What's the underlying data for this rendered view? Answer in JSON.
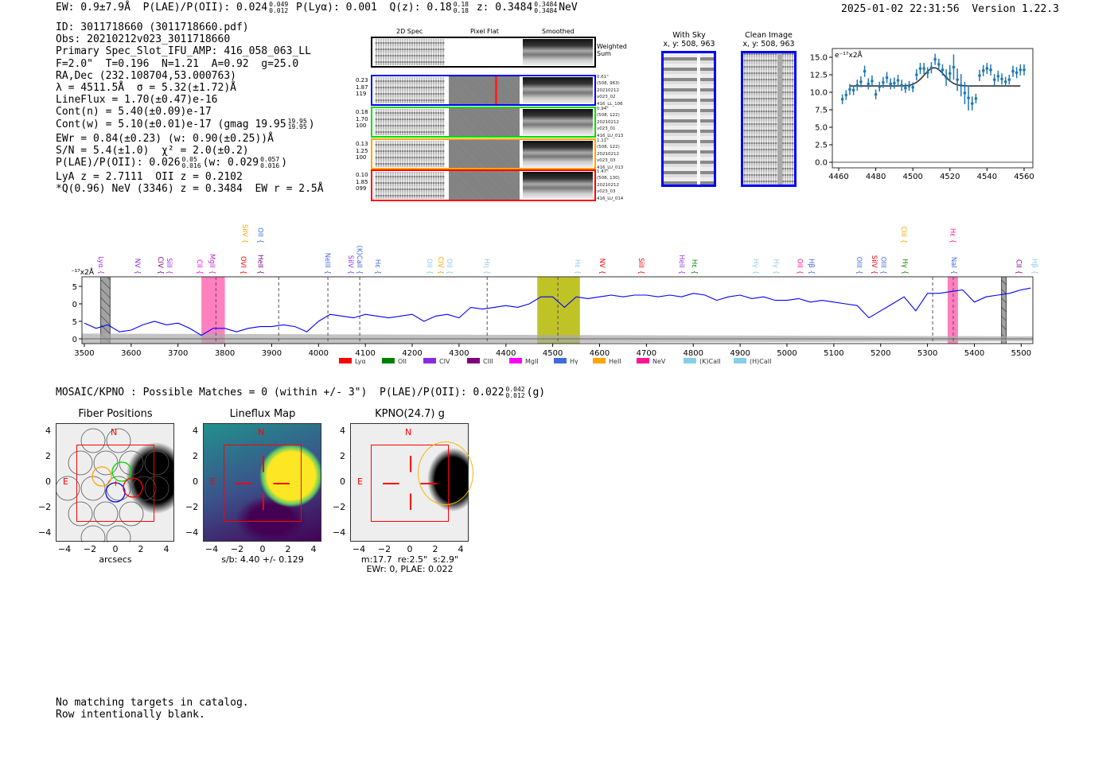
{
  "header": {
    "ew": "EW: 0.9±7.9Å",
    "plae_label": "P(LAE)/P(OII): 0.024",
    "plae_hi": "0.049",
    "plae_lo": "0.012",
    "plya": "P(Lyα): 0.001",
    "qz_label": "Q(z): 0.18",
    "qz_hi": "0.18",
    "qz_lo": "0.18",
    "z_label": "z: 0.3484",
    "z_hi": "0.3484",
    "z_lo": "0.3484",
    "z_line": "NeV",
    "datetime": "2025-01-02 22:31:56",
    "version": "Version 1.22.3"
  },
  "info": {
    "lines": [
      "ID: 3011718660 (3011718660.pdf)",
      "Obs: 20210212v023_3011718660",
      "Primary Spec_Slot_IFU_AMP: 416_058_063_LL",
      "F=2.0\"  T=0.196  N=1.21  A=0.92  g=25.0",
      "RA,Dec (232.108704,53.000763)",
      "λ = 4511.5Å  σ = 5.32(±1.72)Å",
      "LineFlux = 1.70(±0.47)e-16",
      "Cont(n) = 5.40(±0.09)e-17"
    ],
    "contw": "Cont(w) = 5.10(±0.01)e-17 (gmag 19.95",
    "contw_hi": "19.95",
    "contw_lo": "19.95",
    "contw_end": ")",
    "ewr": "EWr = 0.84(±0.23) (w: 0.90(±0.25))Å",
    "sn": "S/N = 5.4(±1.0)  χ² = 2.0(±0.2)",
    "plae2": "P(LAE)/P(OII): 0.026",
    "plae2_hi": "0.05",
    "plae2_lo": "0.016",
    "plae2_w": "(w: 0.029",
    "plae2_w_hi": "0.057",
    "plae2_w_lo": "0.016",
    "plae2_end": ")",
    "lya": "LyA z = 2.7111  OII z = 0.2102",
    "q": "*Q(0.96) NeV (3346) z = 0.3484  EW r = 2.5Å"
  },
  "cutouts": {
    "headers": [
      "2D Spec",
      "Pixel Flat",
      "Smoothed"
    ],
    "weighted_sum": "Weighted\nSum",
    "rows": [
      {
        "color": "#0000ff",
        "left": "0.23\n1.87\n119",
        "right": "0.61\"\n(508, 963)\n20210212\nv023_02\n416_LL_106"
      },
      {
        "color": "#00dd00",
        "left": "0.18\n1.70\n100",
        "right": "0.94\"\n(508, 122)\n20210212\nv023_01\n416_LU_013"
      },
      {
        "color": "#ffa500",
        "left": "0.13\n1.25\n100",
        "right": "1.11\"\n(508, 122)\n20210212\nv023_03\n416_LU_013"
      },
      {
        "color": "#ff0000",
        "left": "0.10\n1.85\n099",
        "right": "1.47\"\n(508, 130)\n20210212\nv023_03\n416_LU_014"
      }
    ],
    "with_sky": "With Sky\nx, y: 508, 963",
    "clean": "Clean Image\nx, y: 508, 963"
  },
  "mosaic": {
    "title": "MOSAIC/KPNO : Possible Matches = 0 (within +/- 3\")  P(LAE)/P(OII): 0.022",
    "hi": "0.042",
    "lo": "0.012",
    "band": "(g)",
    "panels": [
      {
        "title": "Fiber Positions",
        "caption": "arcsecs"
      },
      {
        "title": "Lineflux Map",
        "caption": "s/b: 4.40 +/- 0.129"
      },
      {
        "title": "KPNO(24.7) g",
        "caption": "m:17.7  re:2.5\"  s:2.9\"\nEWr: 0, PLAE: 0.022"
      }
    ],
    "north": "N",
    "east": "E",
    "ticks": [
      "4",
      "2",
      "0",
      "−2",
      "−4"
    ],
    "xticks": [
      "−4",
      "−2",
      "0",
      "2",
      "4"
    ]
  },
  "footer": {
    "line1": "No matching targets in catalog.",
    "line2": "Row intentionally blank."
  },
  "colors": {
    "spectrum": "#0000ff",
    "errorbar": "#1f77b4",
    "fit": "#333333",
    "shade_pink": "#ff69b4",
    "shade_olive": "#b5b800"
  },
  "chart_data": [
    {
      "type": "line",
      "title": "",
      "ylabel": "e⁻¹⁷x2Å",
      "xlim": [
        3495,
        5525
      ],
      "ylim": [
        -1.4,
        17.7
      ],
      "xticks": [
        3500,
        3600,
        3700,
        3800,
        3900,
        4000,
        4100,
        4200,
        4300,
        4400,
        4500,
        4600,
        4700,
        4800,
        4900,
        5000,
        5100,
        5200,
        5300,
        5400,
        5500
      ],
      "yticks": [
        0,
        5,
        10,
        15
      ],
      "x": [
        3500,
        3525,
        3550,
        3575,
        3600,
        3625,
        3650,
        3675,
        3700,
        3725,
        3750,
        3775,
        3800,
        3825,
        3850,
        3875,
        3900,
        3925,
        3950,
        3975,
        4000,
        4025,
        4050,
        4075,
        4100,
        4125,
        4150,
        4175,
        4200,
        4225,
        4250,
        4275,
        4300,
        4325,
        4350,
        4375,
        4400,
        4425,
        4450,
        4475,
        4500,
        4525,
        4550,
        4575,
        4600,
        4625,
        4650,
        4675,
        4700,
        4725,
        4750,
        4775,
        4800,
        4825,
        4850,
        4875,
        4900,
        4925,
        4950,
        4975,
        5000,
        5025,
        5050,
        5075,
        5100,
        5125,
        5150,
        5175,
        5200,
        5225,
        5250,
        5275,
        5300,
        5325,
        5350,
        5375,
        5400,
        5425,
        5450,
        5475,
        5500,
        5520
      ],
      "y": [
        4.5,
        3,
        4,
        2,
        2.5,
        4,
        5,
        4,
        4.5,
        3,
        1,
        3,
        3,
        2,
        3,
        3.5,
        3.5,
        4,
        3.5,
        2,
        5,
        7,
        6.5,
        6,
        7,
        6.5,
        6,
        6.5,
        7,
        5,
        6.5,
        7,
        6,
        9,
        8.5,
        9,
        9.5,
        9,
        10,
        12,
        12,
        9,
        12,
        11.5,
        12,
        12.5,
        12,
        12.5,
        12.5,
        12,
        12.5,
        12,
        13,
        12.5,
        11,
        12,
        12.5,
        11.5,
        12,
        11,
        11,
        11.5,
        10.5,
        11,
        10.5,
        10,
        9.5,
        6,
        8,
        10,
        12,
        8,
        13,
        13,
        13.5,
        14,
        10.5,
        12,
        12.5,
        13,
        14,
        14.5
      ],
      "error_band": {
        "start": 1.5,
        "end": 0.7
      },
      "shaded_regions": [
        {
          "from": 3535,
          "to": 3555,
          "color": "#999999",
          "hatch": true
        },
        {
          "from": 3750,
          "to": 3800,
          "color": "#ff69b4"
        },
        {
          "from": 4467,
          "to": 4558,
          "color": "#b5b800"
        },
        {
          "from": 5343,
          "to": 5365,
          "color": "#ff69b4"
        },
        {
          "from": 5458,
          "to": 5468,
          "color": "#999999",
          "hatch": true
        }
      ],
      "dashed_lines": [
        3781,
        3915,
        4020,
        4088,
        4360,
        4511,
        5311,
        5355
      ],
      "line_labels": [
        {
          "label": "Lyα {",
          "wave": 3536,
          "color": "#9b30ff",
          "row": 0
        },
        {
          "label": "NV {",
          "wave": 3614,
          "color": "#8a2be2",
          "row": 0
        },
        {
          "label": "CIV {",
          "wave": 3663,
          "color": "#800080",
          "row": 0
        },
        {
          "label": "SiII {",
          "wave": 3678,
          "color": "#9b30ff",
          "row": 0
        },
        {
          "label": "CII {",
          "wave": 3746,
          "color": "#ff00ff",
          "row": 0
        },
        {
          "label": "MgII {",
          "wave": 3774,
          "color": "#d020d0",
          "row": 0
        },
        {
          "label": "OVI {",
          "wave": 3840,
          "color": "#ff0000",
          "row": 0
        },
        {
          "label": "HeII {",
          "wave": 3876,
          "color": "#800080",
          "row": 0
        },
        {
          "label": "SiIV {",
          "wave": 3843,
          "color": "#ffa500",
          "row": 1
        },
        {
          "label": "OII {",
          "wave": 3876,
          "color": "#4169e1",
          "row": 1
        },
        {
          "label": "NeIII {",
          "wave": 4020,
          "color": "#4169e1",
          "row": 0
        },
        {
          "label": "SiIV {",
          "wave": 4069,
          "color": "#9b30ff",
          "row": 0
        },
        {
          "label": "(K)CaII {",
          "wave": 4088,
          "color": "#4169e1",
          "row": 0
        },
        {
          "label": "Hε {",
          "wave": 4127,
          "color": "#4169e1",
          "row": 0
        },
        {
          "label": "OII {",
          "wave": 4237,
          "color": "#87ceeb",
          "row": 0
        },
        {
          "label": "CIV {",
          "wave": 4261,
          "color": "#ffa500",
          "row": 0
        },
        {
          "label": "OII {",
          "wave": 4277,
          "color": "#87ceeb",
          "row": 0
        },
        {
          "label": "Hη {",
          "wave": 4360,
          "color": "#87ceeb",
          "row": 0
        },
        {
          "label": "Hε {",
          "wave": 4553,
          "color": "#87ceeb",
          "row": 0
        },
        {
          "label": "NV {",
          "wave": 4606,
          "color": "#ff0000",
          "row": 0
        },
        {
          "label": "SiII {",
          "wave": 4689,
          "color": "#ff0000",
          "row": 0
        },
        {
          "label": "HeII {",
          "wave": 4776,
          "color": "#9b30ff",
          "row": 0
        },
        {
          "label": "Hε {",
          "wave": 4803,
          "color": "#008000",
          "row": 0
        },
        {
          "label": "Hγ {",
          "wave": 4934,
          "color": "#87ceeb",
          "row": 0
        },
        {
          "label": "Hγ {",
          "wave": 4977,
          "color": "#87ceeb",
          "row": 0
        },
        {
          "label": "OII {",
          "wave": 5028,
          "color": "#ff1493",
          "row": 0
        },
        {
          "label": "Hβ {",
          "wave": 5053,
          "color": "#4169e1",
          "row": 0
        },
        {
          "label": "OIII {",
          "wave": 5155,
          "color": "#4169e1",
          "row": 0
        },
        {
          "label": "SiIV {",
          "wave": 5187,
          "color": "#ff0000",
          "row": 0
        },
        {
          "label": "OIII {",
          "wave": 5206,
          "color": "#4169e1",
          "row": 0
        },
        {
          "label": "Hγ {",
          "wave": 5252,
          "color": "#008000",
          "row": 0
        },
        {
          "label": "CIII {",
          "wave": 5250,
          "color": "#ffa500",
          "row": 1
        },
        {
          "label": "NaI {",
          "wave": 5357,
          "color": "#4169e1",
          "row": 0
        },
        {
          "label": "Hε {",
          "wave": 5354,
          "color": "#ff1493",
          "row": 1
        },
        {
          "label": "CII {",
          "wave": 5495,
          "color": "#800080",
          "row": 0
        },
        {
          "label": "Hβ {",
          "wave": 5529,
          "color": "#87ceeb",
          "row": 0
        }
      ],
      "legend": [
        {
          "label": "Lyα",
          "color": "#ff0000"
        },
        {
          "label": "OII",
          "color": "#008000"
        },
        {
          "label": "CIV",
          "color": "#8a2be2"
        },
        {
          "label": "CIII",
          "color": "#800080"
        },
        {
          "label": "MgII",
          "color": "#ff00ff"
        },
        {
          "label": "Hγ",
          "color": "#4169e1"
        },
        {
          "label": "HeII",
          "color": "#ffa500"
        },
        {
          "label": "NeV",
          "color": "#ff1493"
        },
        {
          "label": "(K)CaII",
          "color": "#87ceeb"
        },
        {
          "label": "(H)CaII",
          "color": "#87ceeb"
        }
      ],
      "legend_position": "bottom-right"
    },
    {
      "type": "scatter",
      "ylabel": "e⁻¹⁷x2Å",
      "xlim": [
        4457,
        4565
      ],
      "ylim": [
        -0.8,
        16.3
      ],
      "xticks": [
        4460,
        4480,
        4500,
        4520,
        4540,
        4560
      ],
      "yticks": [
        0.0,
        2.5,
        5.0,
        7.5,
        10.0,
        12.5,
        15.0
      ],
      "x": [
        4462,
        4464,
        4466,
        4468,
        4470,
        4472,
        4474,
        4476,
        4478,
        4480,
        4482,
        4484,
        4486,
        4488,
        4490,
        4492,
        4494,
        4496,
        4498,
        4500,
        4502,
        4504,
        4506,
        4508,
        4510,
        4512,
        4514,
        4516,
        4518,
        4520,
        4522,
        4524,
        4526,
        4528,
        4530,
        4532,
        4534,
        4536,
        4538,
        4540,
        4542,
        4544,
        4546,
        4548,
        4550,
        4552,
        4554,
        4556,
        4558,
        4560
      ],
      "y": [
        9.0,
        9.6,
        10.4,
        10.3,
        11.0,
        11.5,
        13.0,
        11.2,
        11.6,
        9.7,
        10.8,
        11.4,
        12.1,
        11.2,
        11.3,
        11.7,
        11.0,
        10.6,
        10.9,
        10.7,
        12.5,
        13.4,
        13.4,
        12.8,
        13.5,
        14.7,
        14.0,
        13.2,
        12.1,
        12.7,
        13.6,
        11.8,
        11.0,
        9.9,
        9.2,
        8.4,
        9.1,
        12.4,
        13.1,
        13.4,
        13.2,
        11.8,
        12.3,
        11.9,
        11.5,
        11.8,
        13.0,
        12.8,
        13.2,
        13.2
      ],
      "yerr": [
        0.7,
        0.7,
        0.8,
        0.7,
        0.8,
        0.8,
        0.8,
        0.8,
        0.8,
        0.7,
        0.7,
        0.8,
        0.8,
        0.8,
        0.8,
        0.8,
        0.8,
        0.7,
        0.7,
        0.7,
        0.8,
        0.8,
        0.8,
        0.8,
        0.8,
        0.8,
        0.8,
        0.8,
        1.2,
        1.2,
        1.8,
        1.6,
        1.6,
        1.6,
        1.8,
        1.0,
        0.7,
        0.8,
        0.8,
        0.8,
        0.8,
        0.8,
        0.8,
        0.8,
        0.7,
        0.7,
        0.8,
        0.8,
        0.8,
        0.8
      ],
      "fit": {
        "continuum": 10.9,
        "amplitude": 2.6,
        "center": 4511.5,
        "sigma": 5.32,
        "range": [
          4466,
          4558
        ]
      }
    }
  ]
}
